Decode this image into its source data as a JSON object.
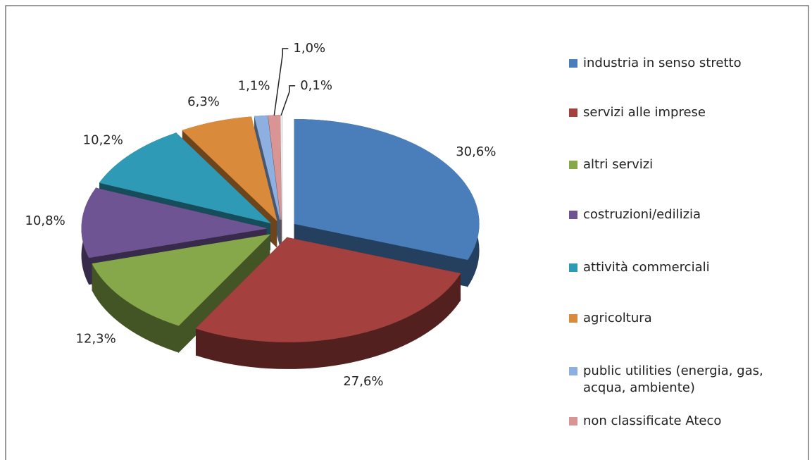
{
  "chart_data": {
    "type": "pie",
    "categories": [
      "industria in senso stretto",
      "servizi alle imprese",
      "altri servizi",
      "costruzioni/edilizia",
      "attività commerciali",
      "agricoltura",
      "public utilities (energia, gas, acqua, ambiente)",
      "non classificate Ateco",
      null
    ],
    "values": [
      30.6,
      27.6,
      12.3,
      10.8,
      10.2,
      6.3,
      1.1,
      1.0,
      0.1
    ],
    "value_labels": [
      "30,6%",
      "27,6%",
      "12,3%",
      "10,8%",
      "10,2%",
      "6,3%",
      "1,1%",
      "1,0%",
      "0,1%"
    ],
    "colors": [
      "#4a7ebb",
      "#a4403d",
      "#86a84a",
      "#6f5494",
      "#2e9ab5",
      "#d98a3a",
      "#8db0e0",
      "#d99593",
      "#ffffff"
    ],
    "legend": "right"
  }
}
